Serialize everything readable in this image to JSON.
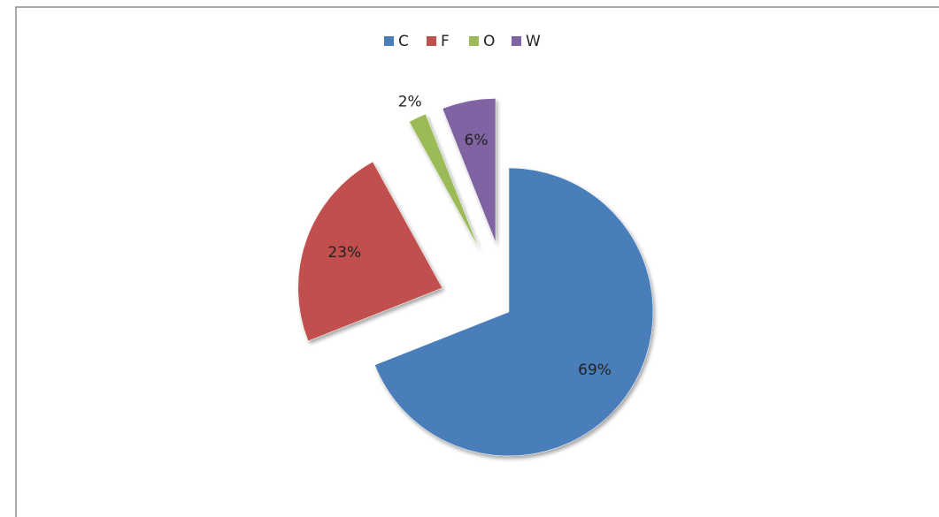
{
  "chart_data": {
    "type": "pie",
    "categories": [
      "C",
      "F",
      "O",
      "W"
    ],
    "values": [
      69,
      23,
      2,
      6
    ],
    "value_labels": [
      "69%",
      "23%",
      "2%",
      "6%"
    ],
    "colors": [
      "#4a7ebb",
      "#c0504d",
      "#9bbb59",
      "#8064a2"
    ],
    "legend": "top"
  }
}
